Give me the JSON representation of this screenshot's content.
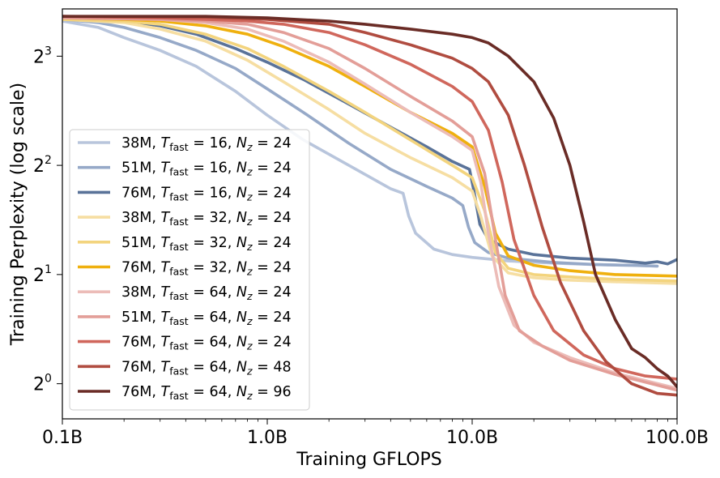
{
  "chart_data": {
    "type": "line",
    "xlabel": "Training GFLOPS",
    "ylabel": "Training Perplexity (log scale)",
    "x_scale": "log10",
    "y_scale": "log2",
    "xlim": [
      0.1,
      100
    ],
    "ylim": [
      0.8,
      10.8
    ],
    "x_ticks": [
      {
        "value": 0.1,
        "label": "0.1B"
      },
      {
        "value": 1,
        "label": "1.0B"
      },
      {
        "value": 10,
        "label": "10.0B"
      },
      {
        "value": 100,
        "label": "100.0B"
      }
    ],
    "y_ticks": [
      {
        "value": 1,
        "base": "2",
        "exp": "0"
      },
      {
        "value": 2,
        "base": "2",
        "exp": "1"
      },
      {
        "value": 4,
        "base": "2",
        "exp": "2"
      },
      {
        "value": 8,
        "base": "2",
        "exp": "3"
      }
    ],
    "legend_position": "lower-left",
    "series": [
      {
        "name": "38M, T_fast = 16, N_z = 24",
        "params": "38M",
        "t_fast": "16",
        "n_z": "24",
        "color": "#b8c5dc",
        "points": [
          [
            0.1,
            10.0
          ],
          [
            0.15,
            9.6
          ],
          [
            0.2,
            9.0
          ],
          [
            0.3,
            8.3
          ],
          [
            0.45,
            7.5
          ],
          [
            0.7,
            6.4
          ],
          [
            1.0,
            5.5
          ],
          [
            1.5,
            4.7
          ],
          [
            2.5,
            4.0
          ],
          [
            4.0,
            3.45
          ],
          [
            4.6,
            3.35
          ],
          [
            4.9,
            2.9
          ],
          [
            5.3,
            2.6
          ],
          [
            6.5,
            2.35
          ],
          [
            8.0,
            2.27
          ],
          [
            10.0,
            2.23
          ],
          [
            15.0,
            2.18
          ],
          [
            25.0,
            2.15
          ],
          [
            40.0,
            2.13
          ],
          [
            60.0,
            2.12
          ],
          [
            80.0,
            2.11
          ]
        ]
      },
      {
        "name": "51M, T_fast = 16, N_z = 24",
        "params": "51M",
        "t_fast": "16",
        "n_z": "24",
        "color": "#96a9c8",
        "points": [
          [
            0.1,
            10.1
          ],
          [
            0.15,
            9.9
          ],
          [
            0.2,
            9.6
          ],
          [
            0.3,
            9.0
          ],
          [
            0.45,
            8.3
          ],
          [
            0.7,
            7.4
          ],
          [
            1.0,
            6.5
          ],
          [
            1.5,
            5.6
          ],
          [
            2.5,
            4.6
          ],
          [
            4.0,
            3.9
          ],
          [
            6.0,
            3.5
          ],
          [
            8.0,
            3.25
          ],
          [
            9.0,
            3.1
          ],
          [
            9.6,
            2.7
          ],
          [
            10.3,
            2.45
          ],
          [
            12.0,
            2.3
          ],
          [
            15.0,
            2.22
          ],
          [
            25.0,
            2.16
          ],
          [
            40.0,
            2.13
          ],
          [
            60.0,
            2.12
          ],
          [
            80.0,
            2.11
          ]
        ]
      },
      {
        "name": "76M, T_fast = 16, N_z = 24",
        "params": "76M",
        "t_fast": "16",
        "n_z": "24",
        "color": "#5a7399",
        "points": [
          [
            0.1,
            10.2
          ],
          [
            0.2,
            10.0
          ],
          [
            0.3,
            9.7
          ],
          [
            0.45,
            9.2
          ],
          [
            0.7,
            8.4
          ],
          [
            1.0,
            7.7
          ],
          [
            1.5,
            6.9
          ],
          [
            2.5,
            5.9
          ],
          [
            4.0,
            5.1
          ],
          [
            6.0,
            4.5
          ],
          [
            8.0,
            4.1
          ],
          [
            9.7,
            3.9
          ],
          [
            10.2,
            3.4
          ],
          [
            10.9,
            2.75
          ],
          [
            12.0,
            2.5
          ],
          [
            15.0,
            2.35
          ],
          [
            20.0,
            2.27
          ],
          [
            30.0,
            2.22
          ],
          [
            50.0,
            2.19
          ],
          [
            70.0,
            2.15
          ],
          [
            80.0,
            2.17
          ],
          [
            90.0,
            2.14
          ],
          [
            100.0,
            2.2
          ]
        ]
      },
      {
        "name": "38M, T_fast = 32, N_z = 24",
        "params": "38M",
        "t_fast": "32",
        "n_z": "24",
        "color": "#f6dea2",
        "points": [
          [
            0.1,
            10.1
          ],
          [
            0.2,
            9.9
          ],
          [
            0.3,
            9.5
          ],
          [
            0.5,
            8.8
          ],
          [
            0.8,
            7.8
          ],
          [
            1.2,
            6.8
          ],
          [
            2.0,
            5.7
          ],
          [
            3.0,
            4.9
          ],
          [
            5.0,
            4.2
          ],
          [
            8.0,
            3.7
          ],
          [
            10.0,
            3.4
          ],
          [
            11.0,
            2.9
          ],
          [
            12.5,
            2.25
          ],
          [
            15.0,
            2.02
          ],
          [
            20.0,
            1.96
          ],
          [
            30.0,
            1.93
          ],
          [
            50.0,
            1.91
          ],
          [
            100.0,
            1.89
          ]
        ]
      },
      {
        "name": "51M, T_fast = 32, N_z = 24",
        "params": "51M",
        "t_fast": "32",
        "n_z": "24",
        "color": "#f3d47e",
        "points": [
          [
            0.1,
            10.1
          ],
          [
            0.2,
            10.0
          ],
          [
            0.3,
            9.8
          ],
          [
            0.5,
            9.2
          ],
          [
            0.8,
            8.4
          ],
          [
            1.2,
            7.5
          ],
          [
            2.0,
            6.4
          ],
          [
            3.0,
            5.6
          ],
          [
            5.0,
            4.7
          ],
          [
            8.0,
            4.0
          ],
          [
            10.0,
            3.7
          ],
          [
            11.5,
            3.0
          ],
          [
            13.0,
            2.3
          ],
          [
            15.0,
            2.08
          ],
          [
            20.0,
            2.0
          ],
          [
            30.0,
            1.97
          ],
          [
            50.0,
            1.94
          ],
          [
            100.0,
            1.92
          ]
        ]
      },
      {
        "name": "76M, T_fast = 32, N_z = 24",
        "params": "76M",
        "t_fast": "32",
        "n_z": "24",
        "color": "#efb00e",
        "points": [
          [
            0.1,
            10.2
          ],
          [
            0.2,
            10.1
          ],
          [
            0.3,
            10.0
          ],
          [
            0.5,
            9.7
          ],
          [
            0.8,
            9.2
          ],
          [
            1.2,
            8.5
          ],
          [
            2.0,
            7.5
          ],
          [
            3.0,
            6.6
          ],
          [
            5.0,
            5.6
          ],
          [
            8.0,
            4.9
          ],
          [
            10.0,
            4.5
          ],
          [
            11.5,
            3.5
          ],
          [
            13.0,
            2.6
          ],
          [
            15.0,
            2.25
          ],
          [
            20.0,
            2.12
          ],
          [
            30.0,
            2.05
          ],
          [
            50.0,
            2.0
          ],
          [
            100.0,
            1.98
          ]
        ]
      },
      {
        "name": "38M, T_fast = 64, N_z = 24",
        "params": "38M",
        "t_fast": "64",
        "n_z": "24",
        "color": "#ecbcb8",
        "points": [
          [
            0.1,
            10.2
          ],
          [
            0.3,
            10.1
          ],
          [
            0.5,
            9.9
          ],
          [
            0.8,
            9.5
          ],
          [
            1.2,
            8.8
          ],
          [
            2.0,
            7.7
          ],
          [
            3.0,
            6.7
          ],
          [
            5.0,
            5.6
          ],
          [
            8.0,
            4.8
          ],
          [
            10.0,
            4.4
          ],
          [
            11.0,
            3.6
          ],
          [
            12.0,
            2.6
          ],
          [
            13.5,
            1.85
          ],
          [
            16.0,
            1.45
          ],
          [
            20.0,
            1.3
          ],
          [
            30.0,
            1.18
          ],
          [
            50.0,
            1.07
          ],
          [
            100.0,
            0.97
          ]
        ]
      },
      {
        "name": "51M, T_fast = 64, N_z = 24",
        "params": "51M",
        "t_fast": "64",
        "n_z": "24",
        "color": "#e39e98",
        "points": [
          [
            0.1,
            10.2
          ],
          [
            0.3,
            10.1
          ],
          [
            0.5,
            10.0
          ],
          [
            0.8,
            9.8
          ],
          [
            1.2,
            9.3
          ],
          [
            2.0,
            8.4
          ],
          [
            3.0,
            7.4
          ],
          [
            5.0,
            6.2
          ],
          [
            8.0,
            5.3
          ],
          [
            10.0,
            4.8
          ],
          [
            11.5,
            3.8
          ],
          [
            13.0,
            2.5
          ],
          [
            14.5,
            1.75
          ],
          [
            17.0,
            1.4
          ],
          [
            22.0,
            1.27
          ],
          [
            30.0,
            1.16
          ],
          [
            50.0,
            1.06
          ],
          [
            100.0,
            0.96
          ]
        ]
      },
      {
        "name": "76M, T_fast = 64, N_z = 24",
        "params": "76M",
        "t_fast": "64",
        "n_z": "24",
        "color": "#d0675c",
        "points": [
          [
            0.1,
            10.3
          ],
          [
            0.3,
            10.2
          ],
          [
            0.5,
            10.1
          ],
          [
            0.8,
            10.0
          ],
          [
            1.2,
            9.8
          ],
          [
            2.0,
            9.3
          ],
          [
            3.0,
            8.6
          ],
          [
            5.0,
            7.6
          ],
          [
            8.0,
            6.6
          ],
          [
            10.0,
            6.0
          ],
          [
            12.0,
            5.0
          ],
          [
            14.0,
            3.6
          ],
          [
            16.0,
            2.5
          ],
          [
            20.0,
            1.75
          ],
          [
            25.0,
            1.4
          ],
          [
            35.0,
            1.2
          ],
          [
            50.0,
            1.1
          ],
          [
            70.0,
            1.05
          ],
          [
            100.0,
            1.03
          ]
        ]
      },
      {
        "name": "76M, T_fast = 64, N_z = 48",
        "params": "76M",
        "t_fast": "64",
        "n_z": "48",
        "color": "#b04c40",
        "points": [
          [
            0.1,
            10.3
          ],
          [
            0.5,
            10.25
          ],
          [
            1.0,
            10.1
          ],
          [
            2.0,
            9.8
          ],
          [
            3.0,
            9.3
          ],
          [
            5.0,
            8.6
          ],
          [
            8.0,
            7.9
          ],
          [
            10.0,
            7.4
          ],
          [
            12.0,
            6.8
          ],
          [
            15.0,
            5.5
          ],
          [
            18.0,
            4.0
          ],
          [
            22.0,
            2.7
          ],
          [
            27.0,
            1.9
          ],
          [
            35.0,
            1.4
          ],
          [
            45.0,
            1.15
          ],
          [
            60.0,
            1.0
          ],
          [
            80.0,
            0.94
          ],
          [
            100.0,
            0.93
          ]
        ]
      },
      {
        "name": "76M, T_fast = 64, N_z = 96",
        "params": "76M",
        "t_fast": "64",
        "n_z": "96",
        "color": "#6a2c26",
        "points": [
          [
            0.1,
            10.3
          ],
          [
            0.5,
            10.3
          ],
          [
            1.0,
            10.2
          ],
          [
            2.0,
            10.0
          ],
          [
            3.0,
            9.8
          ],
          [
            5.0,
            9.5
          ],
          [
            8.0,
            9.2
          ],
          [
            10.0,
            9.0
          ],
          [
            12.0,
            8.7
          ],
          [
            15.0,
            8.0
          ],
          [
            20.0,
            6.8
          ],
          [
            25.0,
            5.4
          ],
          [
            30.0,
            4.0
          ],
          [
            35.0,
            2.8
          ],
          [
            40.0,
            2.0
          ],
          [
            50.0,
            1.5
          ],
          [
            60.0,
            1.25
          ],
          [
            70.0,
            1.18
          ],
          [
            80.0,
            1.1
          ],
          [
            90.0,
            1.05
          ],
          [
            100.0,
            0.98
          ]
        ]
      }
    ]
  }
}
